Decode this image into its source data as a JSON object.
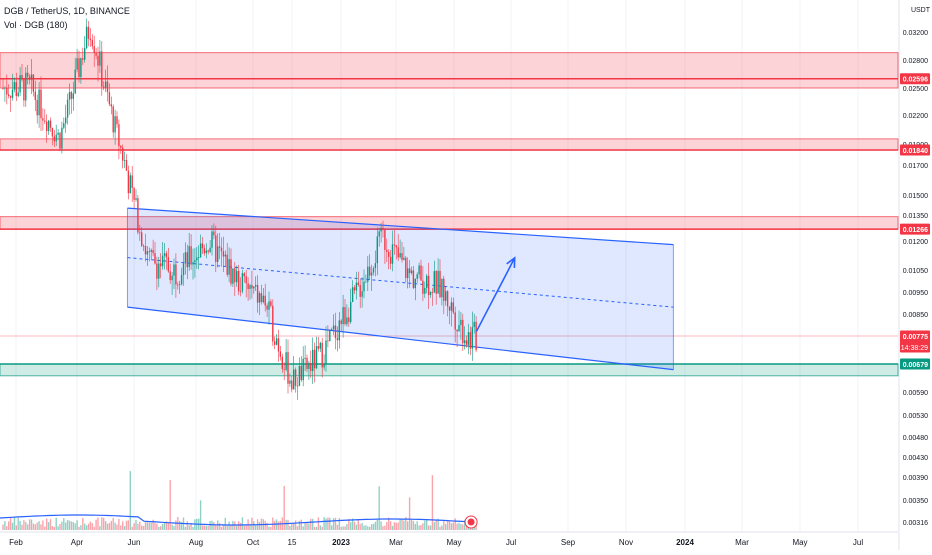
{
  "header": {
    "symbol_line": "DGB / TetherUS, 1D, BINANCE",
    "volume_line": "Vol · DGB (180)"
  },
  "price_axis": {
    "currency": "USDT",
    "ticks": [
      "0.03200",
      "0.02800",
      "0.02500",
      "0.02200",
      "0.01900",
      "0.01700",
      "0.01500",
      "0.01350",
      "0.01200",
      "0.01050",
      "0.00950",
      "0.00850",
      "0.00775",
      "0.00679",
      "0.00590",
      "0.00530",
      "0.00480",
      "0.00430",
      "0.00390",
      "0.00350",
      "0.00316"
    ]
  },
  "time_axis": {
    "labels": [
      "Feb",
      "Apr",
      "Jun",
      "Aug",
      "Oct",
      "15",
      "2023",
      "Mar",
      "May",
      "Jul",
      "Sep",
      "Nov",
      "2024",
      "Mar",
      "May",
      "Jul"
    ]
  },
  "chart_data": {
    "type": "line",
    "title": "DGB / TetherUS, 1D, BINANCE",
    "y_scale": "log",
    "ylabel": "USDT",
    "x": [
      "2022-02",
      "2022-03",
      "2022-04",
      "2022-05",
      "2022-06",
      "2022-07",
      "2022-08",
      "2022-09",
      "2022-10",
      "2022-11",
      "2022-12",
      "2023-01",
      "2023-02",
      "2023-03",
      "2023-04",
      "2023-05"
    ],
    "series": [
      {
        "name": "DGB/USDT",
        "values": [
          0.025,
          0.0195,
          0.033,
          0.0195,
          0.011,
          0.0105,
          0.012,
          0.01,
          0.009,
          0.0062,
          0.0072,
          0.0092,
          0.0122,
          0.0103,
          0.0098,
          0.0077
        ]
      }
    ],
    "resistance_zones": [
      {
        "from": 0.025,
        "to": 0.029,
        "level_label": "0.02596",
        "color": "#f23645"
      },
      {
        "from": 0.0184,
        "to": 0.0195,
        "level_label": "0.01840",
        "color": "#f23645"
      },
      {
        "from": 0.01266,
        "to": 0.0134,
        "level_label": "0.01266",
        "color": "#f23645"
      }
    ],
    "support_zones": [
      {
        "from": 0.0064,
        "to": 0.00679,
        "level_label": "0.00679",
        "color": "#089981"
      }
    ],
    "current_price": {
      "label": "0.00775",
      "countdown": "14:38:29",
      "color": "#f23645"
    },
    "channel": {
      "start": "2022-05-25",
      "end": "2023-12-20",
      "upper": [
        0.014,
        0.0118
      ],
      "lower": [
        0.0088,
        0.0066
      ],
      "color": "#2962ff"
    },
    "arrow": {
      "from": [
        "2023-05-25",
        0.0079
      ],
      "to": [
        "2023-07-05",
        0.0111
      ]
    }
  }
}
